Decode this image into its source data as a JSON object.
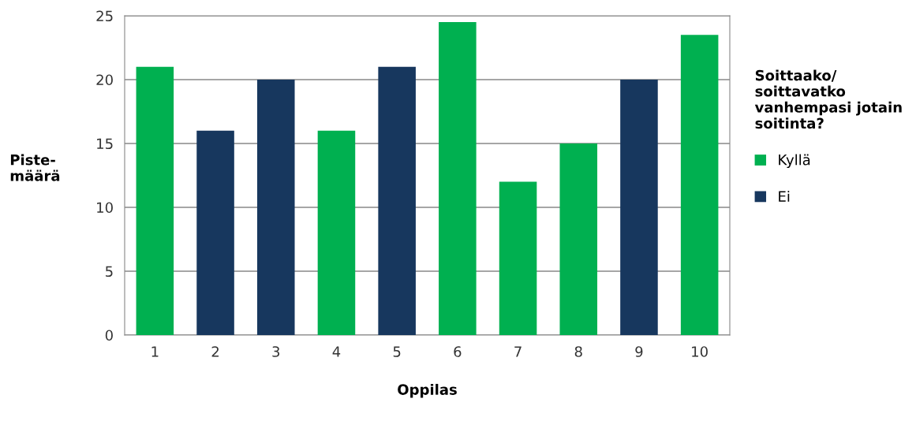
{
  "chart_data": {
    "type": "bar",
    "stacked": true,
    "xlabel": "Oppilas",
    "ylabel": "Piste-\nmäärä",
    "legend_title": "Soittaako/\nsoittavatko\nvanhempasi jotain\nsoitinta?",
    "categories": [
      "1",
      "2",
      "3",
      "4",
      "5",
      "6",
      "7",
      "8",
      "9",
      "10"
    ],
    "series": [
      {
        "name": "Kyllä",
        "color": "#00b050",
        "values": [
          21,
          null,
          null,
          16,
          null,
          24.5,
          12,
          15,
          null,
          23.5
        ]
      },
      {
        "name": "Ei",
        "color": "#17375e",
        "values": [
          null,
          16,
          20,
          null,
          21,
          null,
          null,
          null,
          20,
          null
        ]
      }
    ],
    "ylim": [
      0,
      25
    ],
    "yticks": [
      0,
      5,
      10,
      15,
      20,
      25
    ],
    "grid": "y",
    "legend": "right"
  }
}
